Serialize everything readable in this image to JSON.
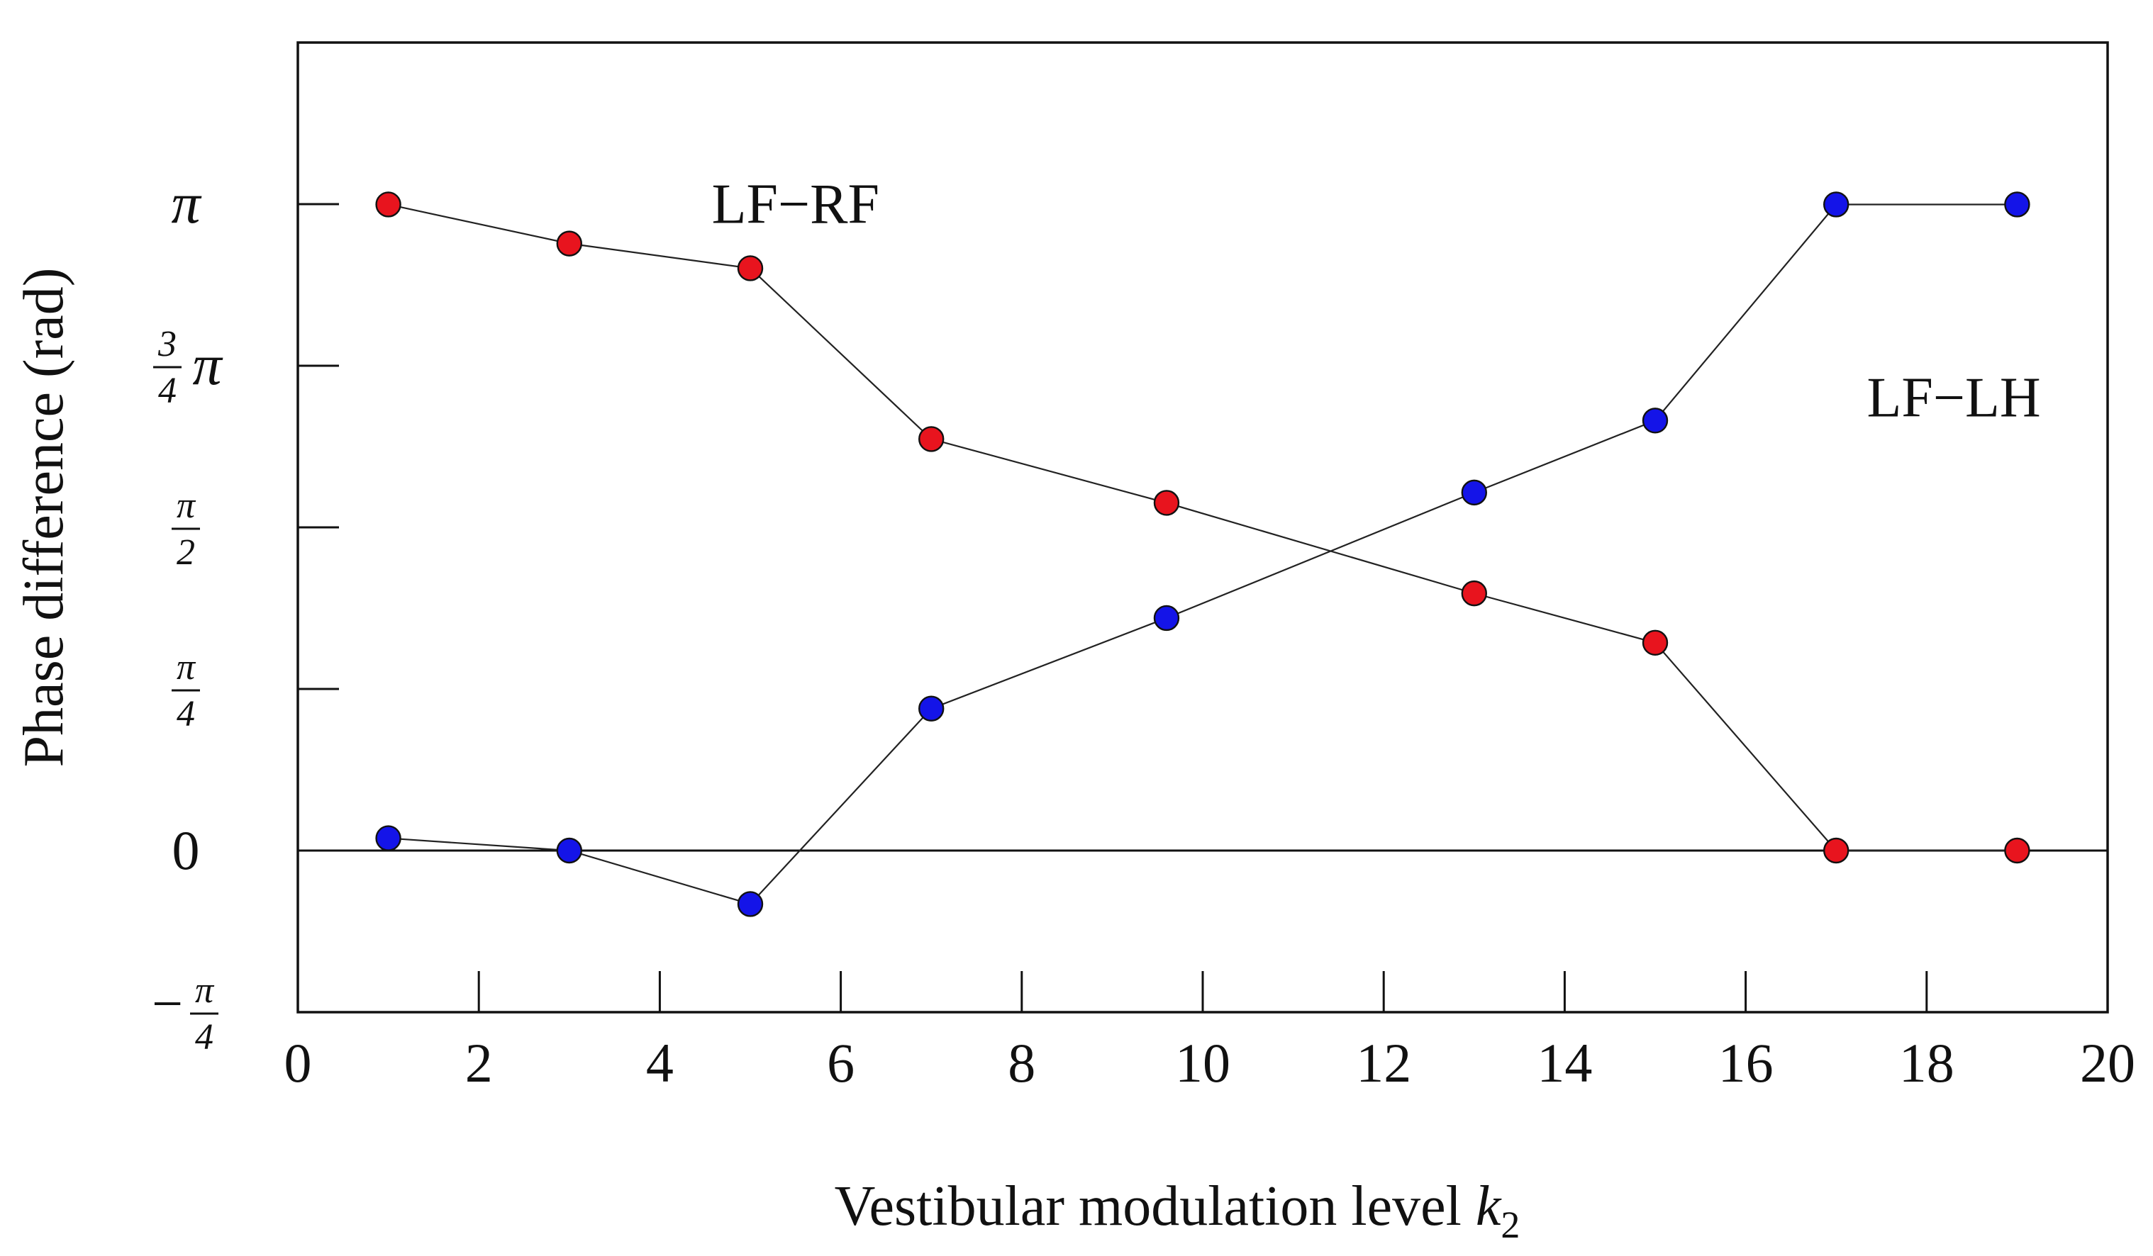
{
  "chart_data": {
    "type": "line",
    "title": "",
    "xlabel": "Vestibular modulation level",
    "xlabel_var": "k",
    "xlabel_sub": "2",
    "ylabel": "Phase difference (rad)",
    "xlim": [
      0,
      20
    ],
    "ylim": [
      -0.7854,
      3.927
    ],
    "grid": false,
    "x_ticks": [
      0,
      2,
      4,
      6,
      8,
      10,
      12,
      14,
      16,
      18,
      20
    ],
    "x_tick_labels": [
      "0",
      "2",
      "4",
      "6",
      "8",
      "10",
      "12",
      "14",
      "16",
      "18",
      "20"
    ],
    "y_ticks": [
      {
        "value": -0.7854,
        "label": "−π/4",
        "num": "π",
        "den": "4",
        "sign": "−"
      },
      {
        "value": 0,
        "label": "0"
      },
      {
        "value": 0.7854,
        "label": "π/4",
        "num": "π",
        "den": "4"
      },
      {
        "value": 1.5708,
        "label": "π/2",
        "num": "π",
        "den": "2"
      },
      {
        "value": 2.3562,
        "label": "3/4π",
        "num": "3",
        "den": "4",
        "suffix": "π"
      },
      {
        "value": 3.1416,
        "label": "π"
      }
    ],
    "zero_line": true,
    "series": [
      {
        "name": "LF−RF",
        "color": "#e8141e",
        "x": [
          1,
          3,
          5,
          7,
          9.6,
          13,
          15,
          17,
          19
        ],
        "y": [
          3.14,
          2.95,
          2.83,
          2.0,
          1.69,
          1.25,
          1.01,
          0.0,
          0.0
        ]
      },
      {
        "name": "LF−LH",
        "color": "#1414e8",
        "x": [
          1,
          3,
          5,
          7,
          9.6,
          13,
          15,
          17,
          19
        ],
        "y": [
          0.06,
          0.0,
          -0.26,
          0.69,
          1.13,
          1.74,
          2.09,
          3.14,
          3.14
        ]
      }
    ],
    "annotations": [
      {
        "text": "LF−RF",
        "x": 5.5,
        "y": 3.14
      },
      {
        "text": "LF−LH",
        "x": 18.3,
        "y": 2.2
      }
    ]
  }
}
